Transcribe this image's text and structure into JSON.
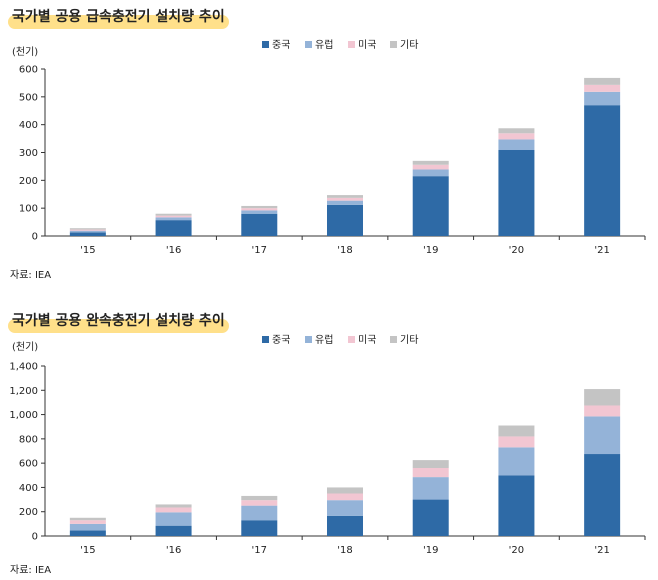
{
  "colors": {
    "china": "#2e6aa6",
    "europe": "#94b3d8",
    "us": "#f2c6d2",
    "other": "#c4c4c4",
    "highlight": "#ffe08a"
  },
  "legend": [
    "중국",
    "유럽",
    "미국",
    "기타"
  ],
  "chart_data": [
    {
      "type": "bar",
      "stacked": true,
      "title": "국가별 공용 급속충전기 설치량 추이",
      "unit_label": "(천기)",
      "source": "자료: IEA",
      "categories": [
        "'15",
        "'16",
        "'17",
        "'18",
        "'19",
        "'20",
        "'21"
      ],
      "ylim": [
        0,
        600
      ],
      "yticks": [
        "0",
        "100",
        "200",
        "300",
        "400",
        "500",
        "600"
      ],
      "series": [
        {
          "name": "중국",
          "values": [
            13,
            57,
            80,
            112,
            215,
            309,
            470
          ]
        },
        {
          "name": "유럽",
          "values": [
            6,
            10,
            12,
            15,
            24,
            38,
            48
          ]
        },
        {
          "name": "미국",
          "values": [
            4,
            6,
            8,
            10,
            17,
            22,
            25
          ]
        },
        {
          "name": "기타",
          "values": [
            5,
            7,
            8,
            10,
            14,
            18,
            25
          ]
        }
      ]
    },
    {
      "type": "bar",
      "stacked": true,
      "title": "국가별 공용 완속충전기 설치량 추이",
      "unit_label": "(천기)",
      "source": "자료: IEA",
      "categories": [
        "'15",
        "'16",
        "'17",
        "'18",
        "'19",
        "'20",
        "'21"
      ],
      "ylim": [
        0,
        1400
      ],
      "yticks": [
        "0",
        "200",
        "400",
        "600",
        "800",
        "1,000",
        "1,200",
        "1,400"
      ],
      "series": [
        {
          "name": "중국",
          "values": [
            45,
            85,
            130,
            165,
            300,
            500,
            675
          ]
        },
        {
          "name": "유럽",
          "values": [
            55,
            110,
            120,
            130,
            185,
            230,
            310
          ]
        },
        {
          "name": "미국",
          "values": [
            30,
            40,
            45,
            55,
            75,
            90,
            90
          ]
        },
        {
          "name": "기타",
          "values": [
            20,
            25,
            35,
            50,
            65,
            90,
            135
          ]
        }
      ]
    }
  ]
}
